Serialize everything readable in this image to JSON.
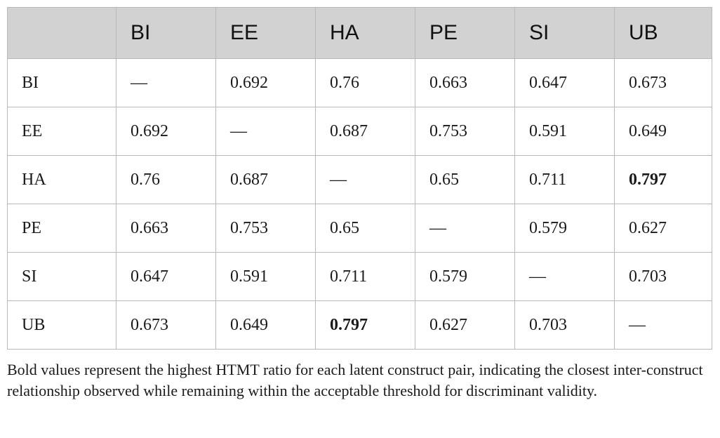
{
  "table": {
    "headers": [
      "",
      "BI",
      "EE",
      "HA",
      "PE",
      "SI",
      "UB"
    ],
    "rows": [
      [
        "BI",
        "—",
        "0.692",
        "0.76",
        "0.663",
        "0.647",
        "0.673"
      ],
      [
        "EE",
        "0.692",
        "—",
        "0.687",
        "0.753",
        "0.591",
        "0.649"
      ],
      [
        "HA",
        "0.76",
        "0.687",
        "—",
        "0.65",
        "0.711",
        "0.797"
      ],
      [
        "PE",
        "0.663",
        "0.753",
        "0.65",
        "—",
        "0.579",
        "0.627"
      ],
      [
        "SI",
        "0.647",
        "0.591",
        "0.711",
        "0.579",
        "—",
        "0.703"
      ],
      [
        "UB",
        "0.673",
        "0.649",
        "0.797",
        "0.627",
        "0.703",
        "—"
      ]
    ],
    "bold_cells": [
      [
        2,
        6
      ],
      [
        5,
        3
      ]
    ]
  },
  "footnote": "Bold values represent the highest HTMT ratio for each latent construct pair, indicating the closest inter-construct relationship observed while remaining within the acceptable threshold for discriminant validity."
}
